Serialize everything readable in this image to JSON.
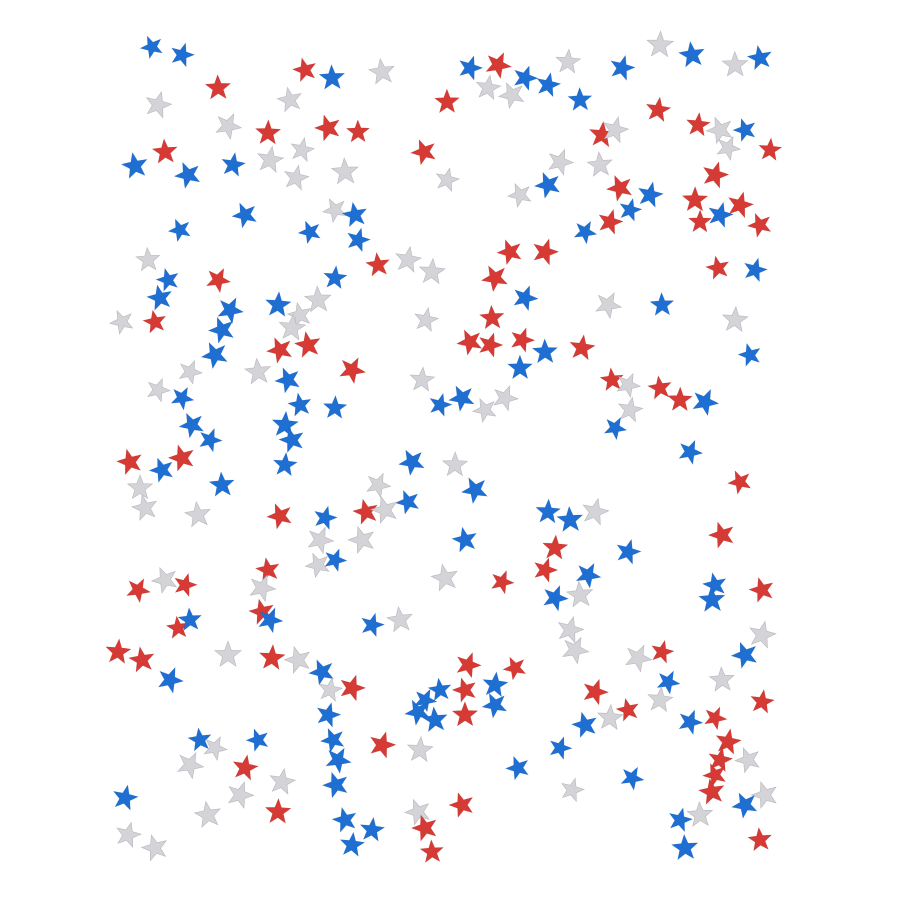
{
  "image": {
    "background_color": "#ffffff",
    "star_colors": {
      "red": "#d63a35",
      "blue": "#1f6fd3",
      "silver": "#d4d4d8"
    }
  }
}
